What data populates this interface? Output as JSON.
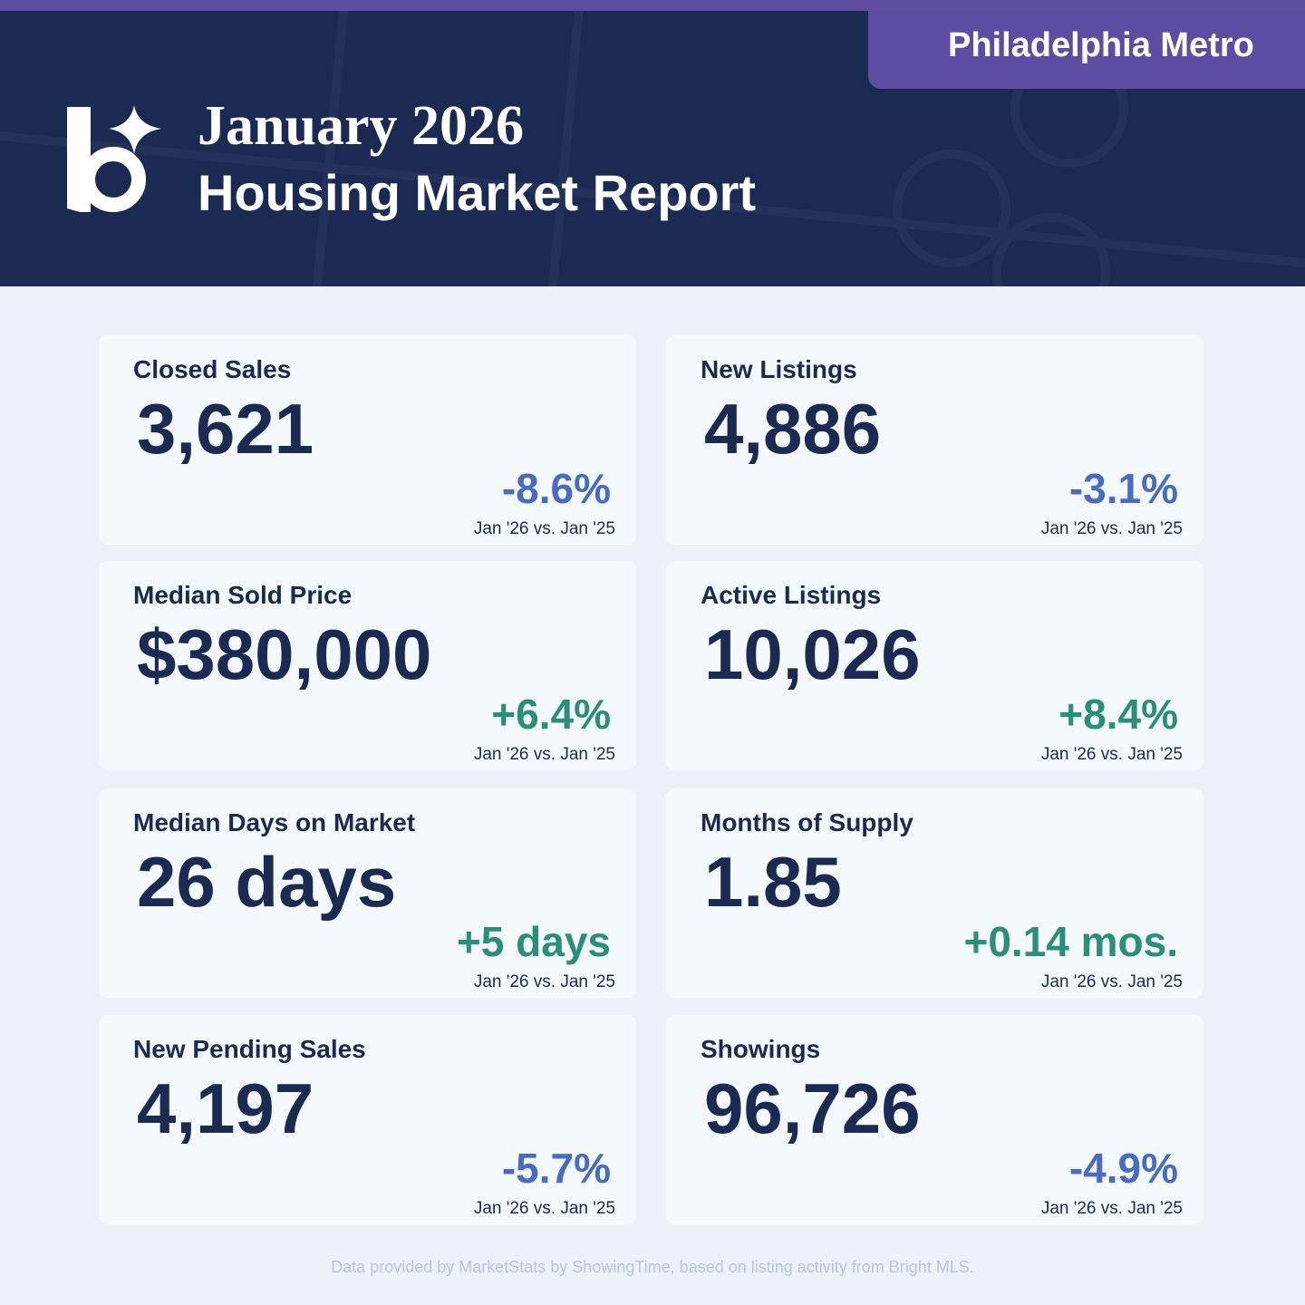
{
  "header": {
    "region": "Philadelphia Metro",
    "title_line1": "January 2026",
    "title_line2": "Housing Market Report"
  },
  "cards": [
    {
      "label": "Closed Sales",
      "value": "3,621",
      "change": "-8.6%",
      "comparison": "Jan '26 vs. Jan '25"
    },
    {
      "label": "New Listings",
      "value": "4,886",
      "change": "-3.1%",
      "comparison": "Jan '26 vs. Jan '25"
    },
    {
      "label": "Median Sold Price",
      "value": "$380,000",
      "change": "+6.4%",
      "comparison": "Jan '26 vs. Jan '25"
    },
    {
      "label": "Active Listings",
      "value": "10,026",
      "change": "+8.4%",
      "comparison": "Jan '26 vs. Jan '25"
    },
    {
      "label": "Median Days on Market",
      "value": "26 days",
      "change": "+5 days",
      "comparison": "Jan '26 vs. Jan '25"
    },
    {
      "label": "Months of Supply",
      "value": "1.85",
      "change": "+0.14 mos.",
      "comparison": "Jan '26 vs. Jan '25"
    },
    {
      "label": "New Pending Sales",
      "value": "4,197",
      "change": "-5.7%",
      "comparison": "Jan '26 vs. Jan '25"
    },
    {
      "label": "Showings",
      "value": "96,726",
      "change": "-4.9%",
      "comparison": "Jan '26 vs. Jan '25"
    }
  ],
  "footer": "Data provided by MarketStats by ShowingTime, based on listing activity from Bright MLS."
}
